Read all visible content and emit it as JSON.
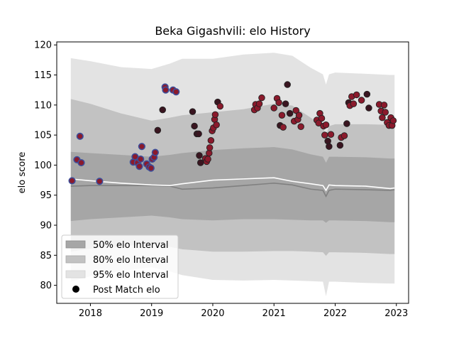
{
  "chart_data": {
    "type": "scatter",
    "title": "Beka Gigashvili: elo History",
    "xlabel": "",
    "ylabel": "elo score",
    "xlim": [
      2017.45,
      2023.2
    ],
    "ylim": [
      77.0,
      120.5
    ],
    "x_ticks": [
      {
        "value": 2018,
        "label": "2018"
      },
      {
        "value": 2019,
        "label": "2019"
      },
      {
        "value": 2020,
        "label": "2020"
      },
      {
        "value": 2021,
        "label": "2021"
      },
      {
        "value": 2022,
        "label": "2022"
      },
      {
        "value": 2023,
        "label": "2023"
      }
    ],
    "y_ticks": [
      {
        "value": 80,
        "label": "80"
      },
      {
        "value": 85,
        "label": "85"
      },
      {
        "value": 90,
        "label": "90"
      },
      {
        "value": 95,
        "label": "95"
      },
      {
        "value": 100,
        "label": "100"
      },
      {
        "value": 105,
        "label": "105"
      },
      {
        "value": 110,
        "label": "110"
      },
      {
        "value": 115,
        "label": "115"
      },
      {
        "value": 120,
        "label": "120"
      }
    ],
    "legend": {
      "position": "lower-left",
      "entries": [
        {
          "label": "50% elo Interval",
          "color": "#a6a6a6"
        },
        {
          "label": "80% elo Interval",
          "color": "#c2c2c2"
        },
        {
          "label": "95% elo Interval",
          "color": "#e3e3e3"
        },
        {
          "label": "Post Match elo",
          "color": "#000000"
        }
      ]
    },
    "colors": {
      "band_95": "#e3e3e3",
      "band_80": "#c2c2c2",
      "band_50": "#a6a6a6",
      "median": "#808080",
      "mean": "#ffffff",
      "point_fill": "#8b1a2c",
      "point_fill_dark": "#3a1520",
      "point_edge": "#3c4e9a"
    },
    "bands": {
      "x": [
        2017.68,
        2018.0,
        2018.5,
        2019.0,
        2019.3,
        2019.5,
        2020.0,
        2020.5,
        2021.0,
        2021.3,
        2021.6,
        2021.8,
        2021.85,
        2021.9,
        2022.0,
        2022.5,
        2022.9,
        2022.97
      ],
      "median": [
        96.5,
        96.6,
        96.6,
        96.6,
        96.5,
        96.0,
        96.2,
        96.6,
        97.0,
        96.7,
        96.0,
        95.8,
        94.8,
        95.8,
        96.0,
        95.9,
        95.8,
        95.9
      ],
      "mean": [
        97.7,
        97.4,
        97.0,
        96.7,
        96.6,
        96.9,
        97.5,
        97.7,
        97.9,
        97.3,
        96.9,
        96.6,
        95.8,
        96.7,
        96.6,
        96.5,
        96.1,
        96.2
      ],
      "p50_low": [
        90.7,
        91.0,
        91.3,
        91.6,
        91.3,
        91.0,
        90.8,
        91.0,
        91.0,
        90.9,
        90.8,
        90.8,
        90.4,
        90.8,
        90.8,
        90.7,
        90.5,
        90.5
      ],
      "p50_high": [
        102.2,
        102.0,
        101.7,
        101.4,
        101.7,
        102.0,
        102.5,
        102.8,
        103.0,
        102.6,
        101.8,
        101.4,
        100.4,
        101.4,
        101.4,
        101.3,
        101.1,
        101.1
      ],
      "p80_low": [
        85.6,
        86.1,
        86.5,
        86.9,
        86.4,
        86.0,
        85.6,
        85.6,
        85.7,
        85.7,
        85.6,
        85.5,
        84.9,
        85.5,
        85.5,
        85.4,
        85.2,
        85.2
      ],
      "p80_high": [
        111.0,
        110.2,
        108.6,
        107.4,
        107.9,
        108.3,
        108.8,
        109.3,
        110.2,
        109.9,
        107.9,
        106.5,
        104.9,
        106.5,
        106.8,
        106.8,
        106.7,
        106.7
      ],
      "p95_low": [
        80.6,
        81.5,
        82.4,
        83.0,
        82.3,
        81.7,
        80.9,
        80.8,
        80.9,
        80.8,
        80.7,
        80.6,
        78.2,
        80.6,
        80.6,
        80.4,
        80.3,
        80.3
      ],
      "p95_high": [
        117.8,
        117.3,
        116.3,
        116.0,
        116.9,
        117.7,
        117.7,
        118.4,
        118.7,
        118.2,
        116.2,
        115.1,
        113.4,
        115.1,
        115.4,
        115.2,
        115.0,
        115.0
      ]
    },
    "points": [
      {
        "x": 2017.7,
        "y": 97.4,
        "edge": true
      },
      {
        "x": 2017.78,
        "y": 100.9,
        "edge": true
      },
      {
        "x": 2017.83,
        "y": 104.8,
        "edge": true
      },
      {
        "x": 2017.85,
        "y": 100.4,
        "edge": true
      },
      {
        "x": 2018.15,
        "y": 97.3,
        "edge": true
      },
      {
        "x": 2018.7,
        "y": 100.5,
        "edge": true
      },
      {
        "x": 2018.73,
        "y": 101.4,
        "edge": true
      },
      {
        "x": 2018.77,
        "y": 100.4,
        "edge": true
      },
      {
        "x": 2018.8,
        "y": 99.8,
        "edge": true
      },
      {
        "x": 2018.82,
        "y": 101.0,
        "edge": true
      },
      {
        "x": 2018.84,
        "y": 103.1,
        "edge": true
      },
      {
        "x": 2018.92,
        "y": 100.2,
        "edge": true
      },
      {
        "x": 2018.96,
        "y": 99.7,
        "edge": true
      },
      {
        "x": 2018.99,
        "y": 99.5,
        "edge": true
      },
      {
        "x": 2019.01,
        "y": 101.0,
        "edge": true
      },
      {
        "x": 2019.04,
        "y": 101.3,
        "edge": true
      },
      {
        "x": 2019.06,
        "y": 102.1,
        "edge": true
      },
      {
        "x": 2019.1,
        "y": 105.8,
        "edge": false,
        "dark": true
      },
      {
        "x": 2019.18,
        "y": 109.2,
        "edge": false,
        "dark": true
      },
      {
        "x": 2019.22,
        "y": 113.0,
        "edge": true
      },
      {
        "x": 2019.23,
        "y": 112.5,
        "edge": true
      },
      {
        "x": 2019.35,
        "y": 112.5,
        "edge": true
      },
      {
        "x": 2019.4,
        "y": 112.2,
        "edge": true
      },
      {
        "x": 2019.67,
        "y": 108.9,
        "edge": false,
        "dark": true
      },
      {
        "x": 2019.7,
        "y": 106.5,
        "edge": false,
        "dark": true
      },
      {
        "x": 2019.74,
        "y": 105.2,
        "edge": false,
        "dark": true
      },
      {
        "x": 2019.77,
        "y": 105.2,
        "edge": false,
        "dark": true
      },
      {
        "x": 2019.78,
        "y": 101.6,
        "edge": false,
        "dark": true
      },
      {
        "x": 2019.8,
        "y": 100.4,
        "edge": false,
        "dark": true
      },
      {
        "x": 2019.88,
        "y": 101.1,
        "edge": false
      },
      {
        "x": 2019.9,
        "y": 100.6,
        "edge": false
      },
      {
        "x": 2019.92,
        "y": 101.0,
        "edge": false
      },
      {
        "x": 2019.94,
        "y": 102.0,
        "edge": false
      },
      {
        "x": 2019.95,
        "y": 102.9,
        "edge": false
      },
      {
        "x": 2019.97,
        "y": 104.1,
        "edge": false
      },
      {
        "x": 2019.99,
        "y": 105.7,
        "edge": false
      },
      {
        "x": 2020.01,
        "y": 106.2,
        "edge": false
      },
      {
        "x": 2020.03,
        "y": 107.6,
        "edge": false
      },
      {
        "x": 2020.04,
        "y": 108.4,
        "edge": false
      },
      {
        "x": 2020.06,
        "y": 106.7,
        "edge": false
      },
      {
        "x": 2020.08,
        "y": 110.5,
        "edge": false,
        "dark": true
      },
      {
        "x": 2020.12,
        "y": 109.8,
        "edge": false
      },
      {
        "x": 2020.68,
        "y": 109.2,
        "edge": false
      },
      {
        "x": 2020.7,
        "y": 110.1,
        "edge": false
      },
      {
        "x": 2020.73,
        "y": 109.5,
        "edge": false
      },
      {
        "x": 2020.76,
        "y": 110.2,
        "edge": false
      },
      {
        "x": 2020.8,
        "y": 111.2,
        "edge": false
      },
      {
        "x": 2021.0,
        "y": 109.5,
        "edge": false
      },
      {
        "x": 2021.05,
        "y": 111.1,
        "edge": false
      },
      {
        "x": 2021.08,
        "y": 110.4,
        "edge": false
      },
      {
        "x": 2021.1,
        "y": 106.6,
        "edge": false,
        "dark": true
      },
      {
        "x": 2021.13,
        "y": 108.3,
        "edge": false
      },
      {
        "x": 2021.15,
        "y": 106.3,
        "edge": false
      },
      {
        "x": 2021.19,
        "y": 110.2,
        "edge": false,
        "dark": true
      },
      {
        "x": 2021.22,
        "y": 113.4,
        "edge": false,
        "dark": true
      },
      {
        "x": 2021.26,
        "y": 108.6,
        "edge": false,
        "dark": true
      },
      {
        "x": 2021.33,
        "y": 107.3,
        "edge": false
      },
      {
        "x": 2021.36,
        "y": 109.1,
        "edge": false
      },
      {
        "x": 2021.39,
        "y": 107.6,
        "edge": false
      },
      {
        "x": 2021.41,
        "y": 108.3,
        "edge": false
      },
      {
        "x": 2021.44,
        "y": 106.4,
        "edge": false
      },
      {
        "x": 2021.7,
        "y": 107.5,
        "edge": false
      },
      {
        "x": 2021.73,
        "y": 107.0,
        "edge": false
      },
      {
        "x": 2021.75,
        "y": 108.6,
        "edge": false
      },
      {
        "x": 2021.78,
        "y": 107.8,
        "edge": false
      },
      {
        "x": 2021.81,
        "y": 106.5,
        "edge": false
      },
      {
        "x": 2021.83,
        "y": 105.0,
        "edge": false
      },
      {
        "x": 2021.85,
        "y": 106.7,
        "edge": false
      },
      {
        "x": 2021.88,
        "y": 104.0,
        "edge": false,
        "dark": true
      },
      {
        "x": 2021.9,
        "y": 103.1,
        "edge": false,
        "dark": true
      },
      {
        "x": 2021.93,
        "y": 105.1,
        "edge": false
      },
      {
        "x": 2022.08,
        "y": 103.3,
        "edge": false,
        "dark": true
      },
      {
        "x": 2022.1,
        "y": 104.6,
        "edge": false
      },
      {
        "x": 2022.15,
        "y": 104.9,
        "edge": false
      },
      {
        "x": 2022.19,
        "y": 106.9,
        "edge": false,
        "dark": true
      },
      {
        "x": 2022.22,
        "y": 110.4,
        "edge": false,
        "dark": true
      },
      {
        "x": 2022.24,
        "y": 109.9,
        "edge": false
      },
      {
        "x": 2022.27,
        "y": 111.4,
        "edge": false
      },
      {
        "x": 2022.3,
        "y": 110.2,
        "edge": false
      },
      {
        "x": 2022.35,
        "y": 111.7,
        "edge": false
      },
      {
        "x": 2022.43,
        "y": 110.8,
        "edge": false
      },
      {
        "x": 2022.52,
        "y": 111.8,
        "edge": false,
        "dark": true
      },
      {
        "x": 2022.55,
        "y": 109.5,
        "edge": false,
        "dark": true
      },
      {
        "x": 2022.72,
        "y": 110.1,
        "edge": false
      },
      {
        "x": 2022.75,
        "y": 109.0,
        "edge": false
      },
      {
        "x": 2022.77,
        "y": 107.9,
        "edge": false
      },
      {
        "x": 2022.8,
        "y": 110.0,
        "edge": false
      },
      {
        "x": 2022.82,
        "y": 108.8,
        "edge": false
      },
      {
        "x": 2022.85,
        "y": 107.1,
        "edge": false
      },
      {
        "x": 2022.88,
        "y": 106.6,
        "edge": false
      },
      {
        "x": 2022.91,
        "y": 107.9,
        "edge": false
      },
      {
        "x": 2022.93,
        "y": 106.6,
        "edge": false
      },
      {
        "x": 2022.95,
        "y": 107.4,
        "edge": false
      }
    ]
  }
}
